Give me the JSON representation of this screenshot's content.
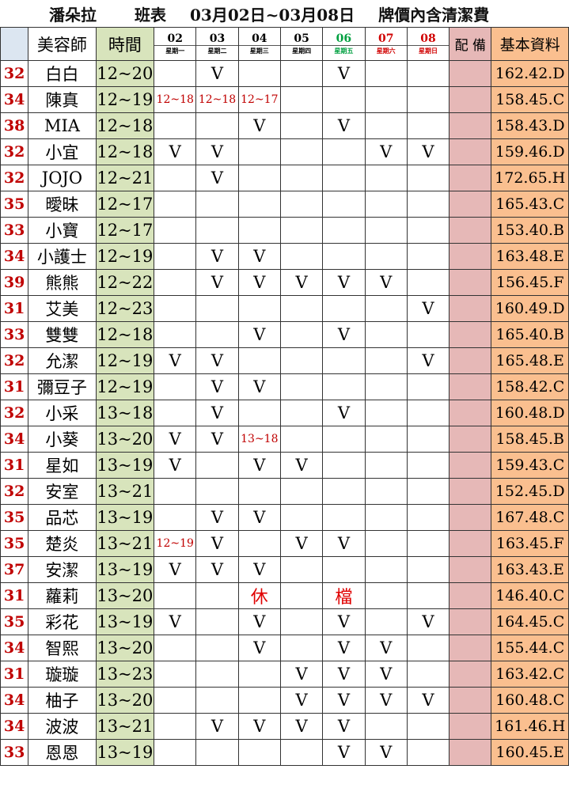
{
  "title": {
    "brand": "潘朵拉",
    "label": "班表",
    "range": "03月02日~03月08日",
    "note": "牌價內含清潔費"
  },
  "header": {
    "name": "美容師",
    "time": "時間",
    "days": [
      {
        "date": "02",
        "weekday": "星期一"
      },
      {
        "date": "03",
        "weekday": "星期二"
      },
      {
        "date": "04",
        "weekday": "星期三"
      },
      {
        "date": "05",
        "weekday": "星期四"
      },
      {
        "date": "06",
        "weekday": "星期五"
      },
      {
        "date": "07",
        "weekday": "星期六"
      },
      {
        "date": "08",
        "weekday": "星期日"
      }
    ],
    "equip": "配 備",
    "info": "基本資料"
  },
  "table": {
    "rows": [
      [
        "32",
        "白白",
        "12~20",
        null,
        "V",
        null,
        null,
        "V",
        null,
        null,
        "162.42.D"
      ],
      [
        "34",
        "陳真",
        "12~19",
        "12~18",
        "12~18",
        "12~17",
        null,
        null,
        null,
        null,
        "158.45.C"
      ],
      [
        "38",
        "MIA",
        "12~18",
        null,
        null,
        "V",
        null,
        "V",
        null,
        null,
        "158.43.D"
      ],
      [
        "32",
        "小宜",
        "12~18",
        "V",
        "V",
        null,
        null,
        null,
        "V",
        "V",
        "159.46.D"
      ],
      [
        "32",
        "JOJO",
        "12~21",
        null,
        "V",
        null,
        null,
        null,
        null,
        null,
        "172.65.H"
      ],
      [
        "35",
        "曖昧",
        "12~17",
        null,
        null,
        null,
        null,
        null,
        null,
        null,
        "165.43.C"
      ],
      [
        "33",
        "小寶",
        "12~17",
        null,
        null,
        null,
        null,
        null,
        null,
        null,
        "153.40.B"
      ],
      [
        "34",
        "小護士",
        "12~19",
        null,
        "V",
        "V",
        null,
        null,
        null,
        null,
        "163.48.E"
      ],
      [
        "39",
        "熊熊",
        "12~22",
        null,
        "V",
        "V",
        "V",
        "V",
        "V",
        null,
        "156.45.F"
      ],
      [
        "31",
        "艾美",
        "12~23",
        null,
        null,
        null,
        null,
        null,
        null,
        "V",
        "160.49.D"
      ],
      [
        "33",
        "雙雙",
        "12~18",
        null,
        null,
        "V",
        null,
        "V",
        null,
        null,
        "165.40.B"
      ],
      [
        "32",
        "允潔",
        "12~19",
        "V",
        "V",
        null,
        null,
        null,
        null,
        "V",
        "165.48.E"
      ],
      [
        "31",
        "彌豆子",
        "12~19",
        null,
        "V",
        "V",
        null,
        null,
        null,
        null,
        "158.42.C"
      ],
      [
        "32",
        "小采",
        "13~18",
        null,
        "V",
        null,
        null,
        "V",
        null,
        null,
        "160.48.D"
      ],
      [
        "34",
        "小葵",
        "13~20",
        "V",
        "V",
        "13~18",
        null,
        null,
        null,
        null,
        "158.45.B"
      ],
      [
        "31",
        "星如",
        "13~19",
        "V",
        null,
        "V",
        "V",
        null,
        null,
        null,
        "159.43.C"
      ],
      [
        "32",
        "安室",
        "13~21",
        null,
        null,
        null,
        null,
        null,
        null,
        null,
        "152.45.D"
      ],
      [
        "35",
        "品芯",
        "13~19",
        null,
        "V",
        "V",
        null,
        null,
        null,
        null,
        "167.48.C"
      ],
      [
        "35",
        "楚炎",
        "13~21",
        "12~19",
        "V",
        null,
        "V",
        "V",
        null,
        null,
        "163.45.F"
      ],
      [
        "37",
        "安潔",
        "13~19",
        "V",
        "V",
        "V",
        null,
        null,
        null,
        null,
        "163.43.E"
      ],
      [
        "31",
        "蘿莉",
        "13~20",
        null,
        null,
        "休",
        null,
        "檔",
        null,
        null,
        "146.40.C"
      ],
      [
        "35",
        "彩花",
        "13~19",
        "V",
        null,
        "V",
        null,
        "V",
        null,
        "V",
        "164.45.C"
      ],
      [
        "34",
        "智熙",
        "13~20",
        null,
        null,
        "V",
        null,
        "V",
        "V",
        null,
        "155.44.C"
      ],
      [
        "31",
        "璇璇",
        "13~23",
        null,
        null,
        null,
        "V",
        "V",
        "V",
        null,
        "163.42.C"
      ],
      [
        "34",
        "柚子",
        "13~20",
        null,
        null,
        null,
        "V",
        "V",
        "V",
        "V",
        "160.48.C"
      ],
      [
        "34",
        "波波",
        "13~21",
        null,
        "V",
        "V",
        "V",
        "V",
        null,
        null,
        "161.46.H"
      ],
      [
        "33",
        "恩恩",
        "13~19",
        null,
        null,
        null,
        null,
        "V",
        "V",
        null,
        "160.45.E"
      ]
    ]
  }
}
